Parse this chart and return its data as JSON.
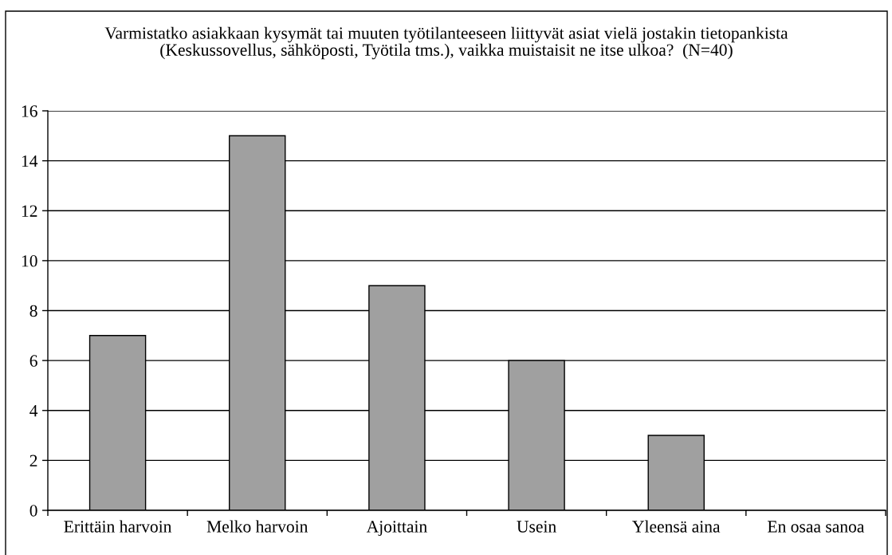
{
  "chart_data": {
    "type": "bar",
    "title": "Varmistatko asiakkaan kysymät tai muuten työtilanteeseen liittyvät asiat vielä jostakin tietopankista\n(Keskussovellus, sähköposti, Työtila tms.), vaikka muistaisit ne itse ulkoa?  (N=40)",
    "categories": [
      "Erittäin harvoin",
      "Melko harvoin",
      "Ajoittain",
      "Usein",
      "Yleensä aina",
      "En osaa sanoa"
    ],
    "values": [
      7,
      15,
      9,
      6,
      3,
      0
    ],
    "color": "#a0a0a0",
    "ylim": [
      0,
      16
    ],
    "yticks": [
      0,
      2,
      4,
      6,
      8,
      10,
      12,
      14,
      16
    ],
    "grid": "y"
  }
}
